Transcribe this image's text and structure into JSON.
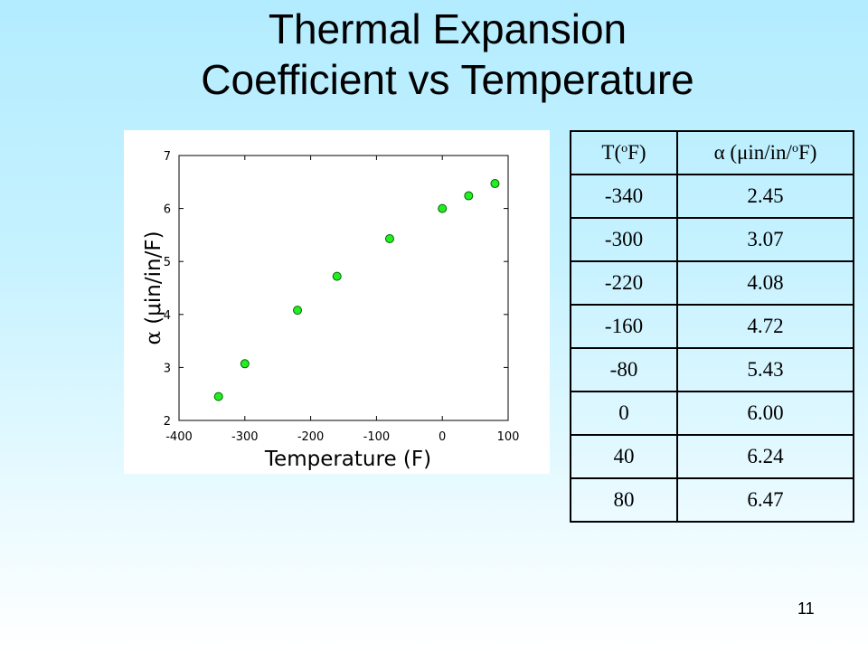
{
  "title": {
    "line1": "Thermal Expansion",
    "line2": "Coefficient vs Temperature"
  },
  "chart_data": {
    "type": "scatter",
    "title": "",
    "xlabel": "Temperature (F)",
    "ylabel_symbol": "α",
    "ylabel_rest": " (μin/in/F)",
    "xlim": [
      -400,
      100
    ],
    "ylim": [
      2,
      7
    ],
    "xticks": [
      -400,
      -300,
      -200,
      -100,
      0,
      100
    ],
    "yticks": [
      2,
      3,
      4,
      5,
      6,
      7
    ],
    "grid": false,
    "marker_color": "#22ee22",
    "marker_edge": "#006400",
    "x": [
      -340,
      -300,
      -220,
      -160,
      -80,
      0,
      40,
      80
    ],
    "y": [
      2.45,
      3.07,
      4.08,
      4.72,
      5.43,
      6.0,
      6.24,
      6.47
    ]
  },
  "table": {
    "header_t_base": "T(",
    "header_t_sup": "o",
    "header_t_end": "F)",
    "header_a_base": "α (μin/in/",
    "header_a_sup": "o",
    "header_a_end": "F)",
    "rows": [
      {
        "t": "-340",
        "a": "2.45"
      },
      {
        "t": "-300",
        "a": "3.07"
      },
      {
        "t": "-220",
        "a": "4.08"
      },
      {
        "t": "-160",
        "a": "4.72"
      },
      {
        "t": "-80",
        "a": "5.43"
      },
      {
        "t": "0",
        "a": "6.00"
      },
      {
        "t": "40",
        "a": "6.24"
      },
      {
        "t": "80",
        "a": "6.47"
      }
    ]
  },
  "page_number": "11"
}
